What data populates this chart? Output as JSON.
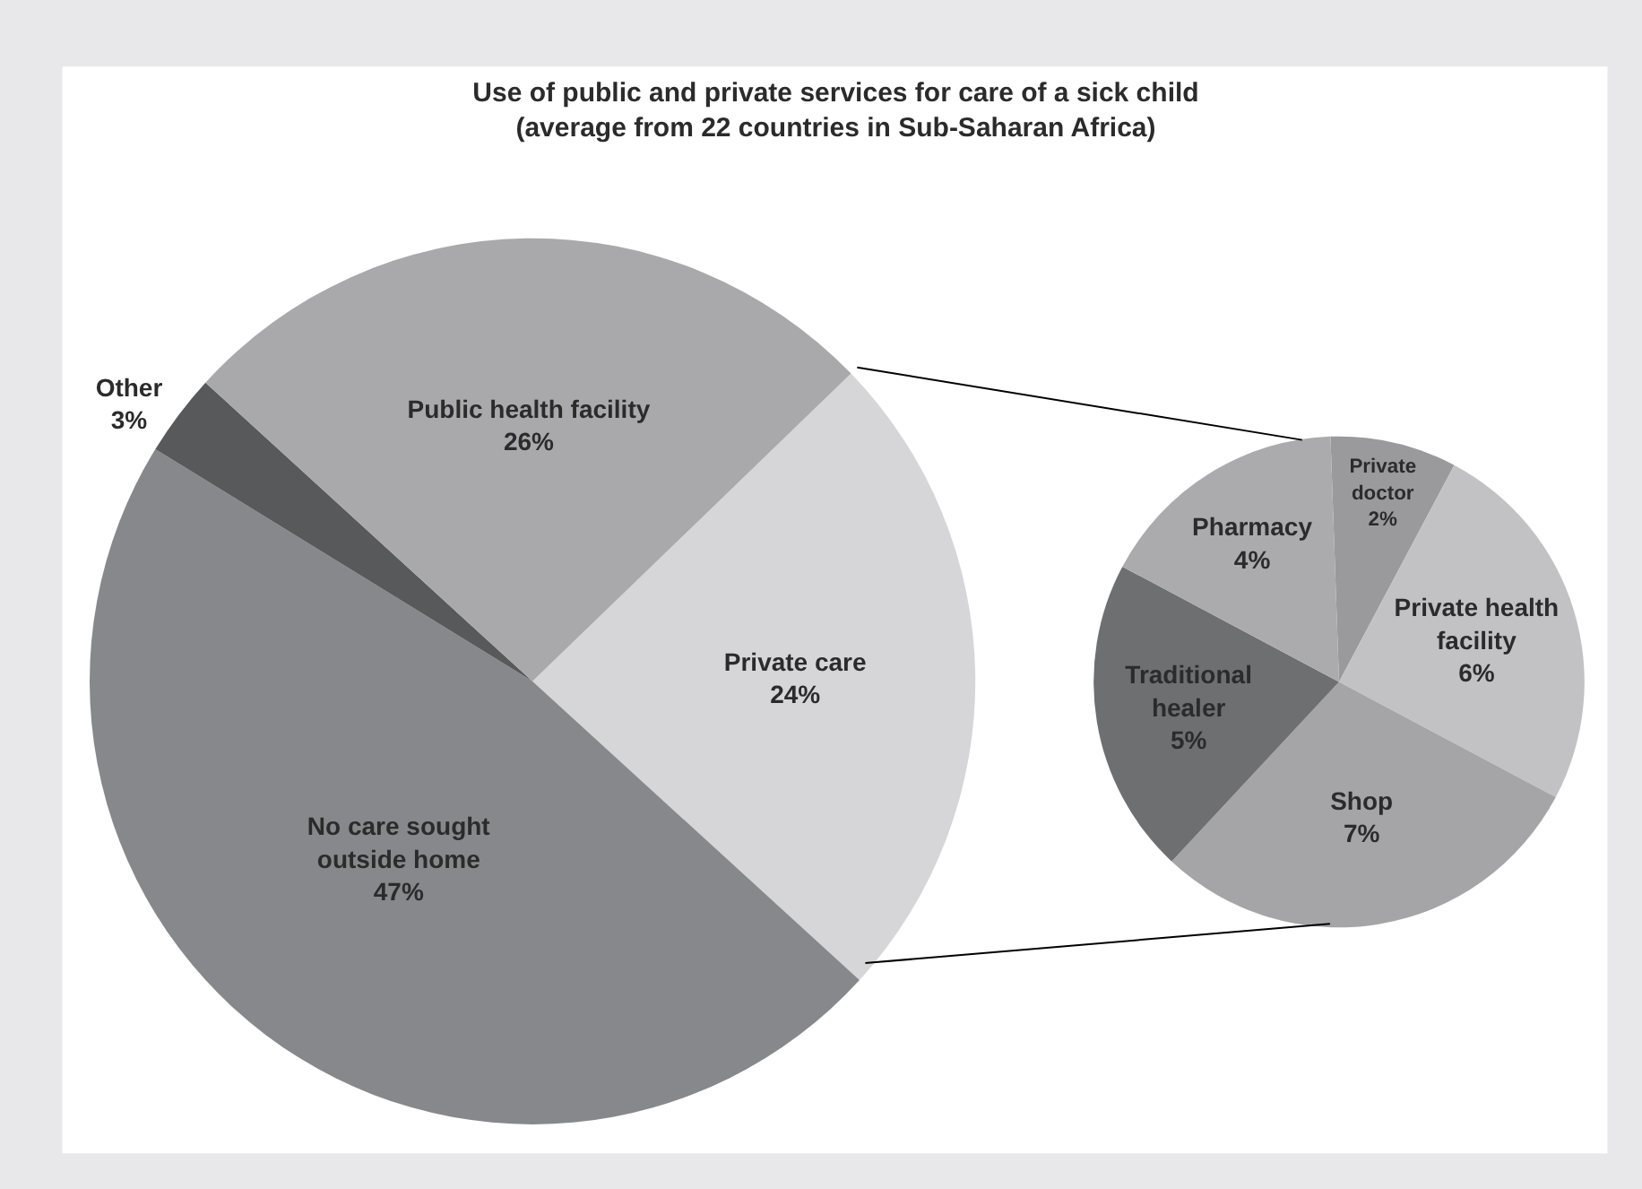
{
  "chart_data": [
    {
      "type": "pie",
      "title": "Use of public and private services for care of a sick child\n(average from 22 countries in Sub-Saharan Africa)",
      "categories": [
        "Private care",
        "No care sought\noutside home",
        "Other",
        "Public health facility"
      ],
      "values": [
        24,
        47,
        3,
        26
      ],
      "value_labels": [
        "24%",
        "47%",
        "3%",
        "26%"
      ],
      "colors": [
        "#d6d6d8",
        "#87888b",
        "#58595b",
        "#a9a9ab"
      ]
    },
    {
      "type": "pie",
      "categories": [
        "Private\ndoctor",
        "Private health\nfacility",
        "Shop",
        "Traditional\nhealer",
        "Pharmacy"
      ],
      "values": [
        2,
        6,
        7,
        5,
        4
      ],
      "value_labels": [
        "2%",
        "6%",
        "7%",
        "5%",
        "4%"
      ],
      "colors": [
        "#9a9a9c",
        "#c2c2c4",
        "#a5a5a7",
        "#6e6f71",
        "#ababad"
      ]
    }
  ]
}
